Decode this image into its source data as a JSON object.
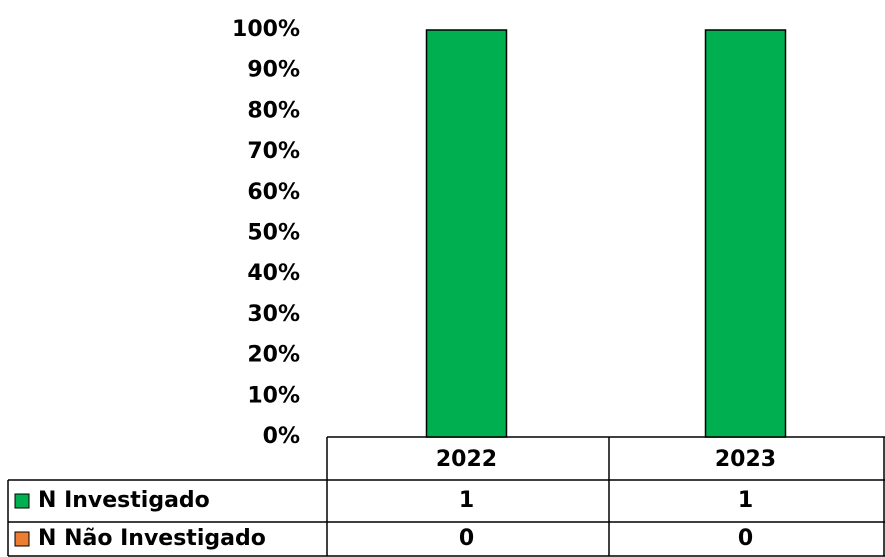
{
  "chart_data": {
    "type": "bar",
    "stacked_percent": true,
    "categories": [
      "2022",
      "2023"
    ],
    "series": [
      {
        "name": "N Investigado",
        "color": "#00b050",
        "values": [
          1,
          1
        ]
      },
      {
        "name": "N Não Investigado",
        "color": "#ed7d31",
        "values": [
          0,
          0
        ]
      }
    ],
    "ylim": [
      0,
      100
    ],
    "yticks": [
      {
        "value": 0,
        "label": "0%"
      },
      {
        "value": 10,
        "label": "10%"
      },
      {
        "value": 20,
        "label": "20%"
      },
      {
        "value": 30,
        "label": "30%"
      },
      {
        "value": 40,
        "label": "40%"
      },
      {
        "value": 50,
        "label": "50%"
      },
      {
        "value": 60,
        "label": "60%"
      },
      {
        "value": 70,
        "label": "70%"
      },
      {
        "value": 80,
        "label": "80%"
      },
      {
        "value": 90,
        "label": "90%"
      },
      {
        "value": 100,
        "label": "100%"
      }
    ]
  }
}
